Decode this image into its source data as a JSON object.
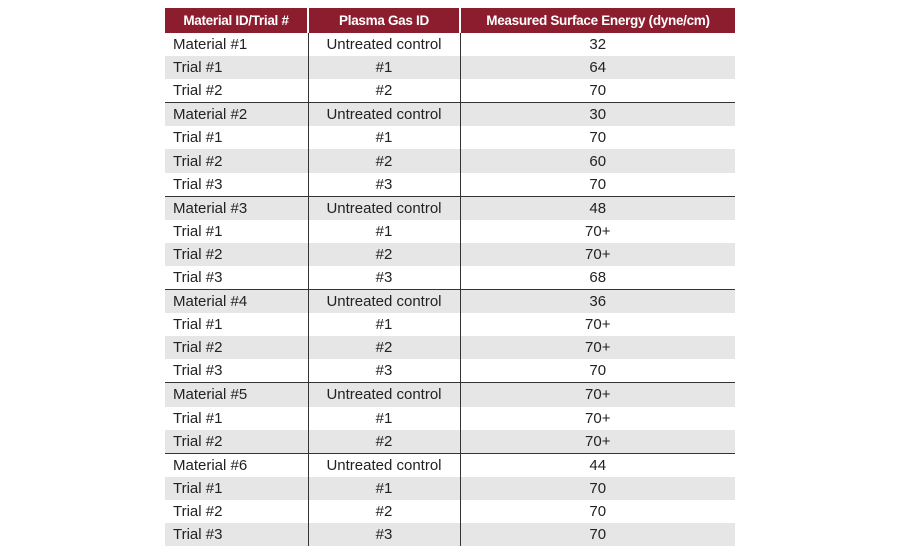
{
  "table": {
    "header": [
      "Material ID/Trial #",
      "Plasma Gas ID",
      "Measured Surface Energy (dyne/cm)"
    ],
    "rows": [
      [
        "Material #1",
        "Untreated control",
        32
      ],
      [
        "Trial #1",
        "#1",
        64
      ],
      [
        "Trial #2",
        "#2",
        70
      ],
      [
        "Material #2",
        "Untreated control",
        30
      ],
      [
        "Trial #1",
        "#1",
        70
      ],
      [
        "Trial #2",
        "#2",
        60
      ],
      [
        "Trial #3",
        "#3",
        70
      ],
      [
        "Material #3",
        "Untreated control",
        48
      ],
      [
        "Trial #1",
        "#1",
        "70+"
      ],
      [
        "Trial #2",
        "#2",
        "70+"
      ],
      [
        "Trial #3",
        "#3",
        68
      ],
      [
        "Material #4",
        "Untreated control",
        36
      ],
      [
        "Trial #1",
        "#1",
        "70+"
      ],
      [
        "Trial #2",
        "#2",
        "70+"
      ],
      [
        "Trial #3",
        "#3",
        70
      ],
      [
        "Material #5",
        "Untreated control",
        "70+"
      ],
      [
        "Trial #1",
        "#1",
        "70+"
      ],
      [
        "Trial #2",
        "#2",
        "70+"
      ],
      [
        "Material #6",
        "Untreated control",
        44
      ],
      [
        "Trial #1",
        "#1",
        70
      ],
      [
        "Trial #2",
        "#2",
        70
      ],
      [
        "Trial #3",
        "#3",
        70
      ]
    ]
  }
}
